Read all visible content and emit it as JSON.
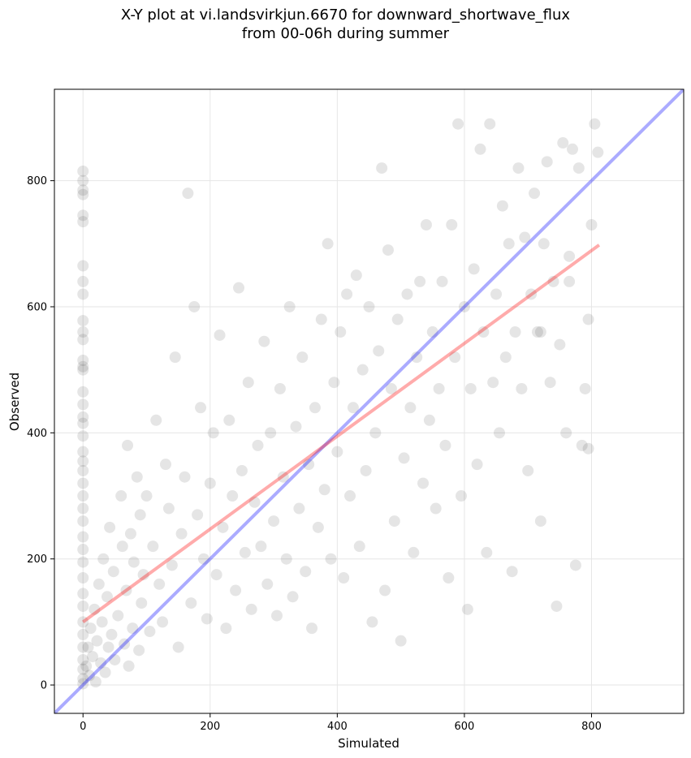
{
  "chart_data": {
    "type": "scatter",
    "title": "X-Y plot at vi.landsvirkjun.6670 for downward_shortwave_flux",
    "subtitle": "from 00-06h during summer",
    "xlabel": "Simulated",
    "ylabel": "Observed",
    "xlim": [
      -45,
      945
    ],
    "ylim": [
      -45,
      945
    ],
    "xticks": [
      0,
      200,
      400,
      600,
      800
    ],
    "yticks": [
      0,
      200,
      400,
      600,
      800
    ],
    "grid": true,
    "colors": {
      "points": "#000000",
      "identity_line": "#0000ff",
      "fit_line": "#ff0000",
      "grid": "#e6e6e6"
    },
    "identity_line": {
      "from": [
        -45,
        -45
      ],
      "to": [
        945,
        945
      ]
    },
    "fit_line": {
      "from": [
        0,
        100
      ],
      "to": [
        812,
        698
      ]
    },
    "points_subset_note": "representative subset of scatter points",
    "points": [
      [
        0,
        815
      ],
      [
        0,
        800
      ],
      [
        0,
        785
      ],
      [
        0,
        778
      ],
      [
        0,
        745
      ],
      [
        0,
        735
      ],
      [
        0,
        665
      ],
      [
        0,
        640
      ],
      [
        0,
        620
      ],
      [
        0,
        578
      ],
      [
        0,
        560
      ],
      [
        0,
        548
      ],
      [
        0,
        515
      ],
      [
        0,
        505
      ],
      [
        0,
        500
      ],
      [
        0,
        465
      ],
      [
        0,
        445
      ],
      [
        0,
        425
      ],
      [
        0,
        415
      ],
      [
        0,
        395
      ],
      [
        0,
        370
      ],
      [
        0,
        355
      ],
      [
        0,
        340
      ],
      [
        0,
        320
      ],
      [
        0,
        300
      ],
      [
        0,
        280
      ],
      [
        0,
        260
      ],
      [
        0,
        235
      ],
      [
        0,
        215
      ],
      [
        0,
        195
      ],
      [
        0,
        170
      ],
      [
        0,
        145
      ],
      [
        0,
        125
      ],
      [
        0,
        100
      ],
      [
        0,
        80
      ],
      [
        0,
        60
      ],
      [
        0,
        40
      ],
      [
        0,
        25
      ],
      [
        0,
        10
      ],
      [
        0,
        2
      ],
      [
        5,
        30
      ],
      [
        8,
        60
      ],
      [
        10,
        15
      ],
      [
        12,
        90
      ],
      [
        15,
        45
      ],
      [
        18,
        120
      ],
      [
        20,
        5
      ],
      [
        22,
        70
      ],
      [
        25,
        160
      ],
      [
        28,
        35
      ],
      [
        30,
        100
      ],
      [
        32,
        200
      ],
      [
        35,
        20
      ],
      [
        38,
        140
      ],
      [
        40,
        60
      ],
      [
        42,
        250
      ],
      [
        45,
        80
      ],
      [
        48,
        180
      ],
      [
        50,
        40
      ],
      [
        55,
        110
      ],
      [
        60,
        300
      ],
      [
        62,
        220
      ],
      [
        65,
        65
      ],
      [
        68,
        150
      ],
      [
        70,
        380
      ],
      [
        72,
        30
      ],
      [
        75,
        240
      ],
      [
        78,
        90
      ],
      [
        80,
        195
      ],
      [
        85,
        330
      ],
      [
        88,
        55
      ],
      [
        90,
        270
      ],
      [
        92,
        130
      ],
      [
        95,
        175
      ],
      [
        100,
        300
      ],
      [
        105,
        85
      ],
      [
        110,
        220
      ],
      [
        115,
        420
      ],
      [
        120,
        160
      ],
      [
        125,
        100
      ],
      [
        130,
        350
      ],
      [
        135,
        280
      ],
      [
        140,
        190
      ],
      [
        145,
        520
      ],
      [
        150,
        60
      ],
      [
        155,
        240
      ],
      [
        160,
        330
      ],
      [
        165,
        780
      ],
      [
        170,
        130
      ],
      [
        175,
        600
      ],
      [
        180,
        270
      ],
      [
        185,
        440
      ],
      [
        190,
        200
      ],
      [
        195,
        105
      ],
      [
        200,
        320
      ],
      [
        205,
        400
      ],
      [
        210,
        175
      ],
      [
        215,
        555
      ],
      [
        220,
        250
      ],
      [
        225,
        90
      ],
      [
        230,
        420
      ],
      [
        235,
        300
      ],
      [
        240,
        150
      ],
      [
        245,
        630
      ],
      [
        250,
        340
      ],
      [
        255,
        210
      ],
      [
        260,
        480
      ],
      [
        265,
        120
      ],
      [
        270,
        290
      ],
      [
        275,
        380
      ],
      [
        280,
        220
      ],
      [
        285,
        545
      ],
      [
        290,
        160
      ],
      [
        295,
        400
      ],
      [
        300,
        260
      ],
      [
        305,
        110
      ],
      [
        310,
        470
      ],
      [
        315,
        330
      ],
      [
        320,
        200
      ],
      [
        325,
        600
      ],
      [
        330,
        140
      ],
      [
        335,
        410
      ],
      [
        340,
        280
      ],
      [
        345,
        520
      ],
      [
        350,
        180
      ],
      [
        355,
        350
      ],
      [
        360,
        90
      ],
      [
        365,
        440
      ],
      [
        370,
        250
      ],
      [
        375,
        580
      ],
      [
        380,
        310
      ],
      [
        385,
        700
      ],
      [
        390,
        200
      ],
      [
        395,
        480
      ],
      [
        400,
        370
      ],
      [
        405,
        560
      ],
      [
        410,
        170
      ],
      [
        415,
        620
      ],
      [
        420,
        300
      ],
      [
        425,
        440
      ],
      [
        430,
        650
      ],
      [
        435,
        220
      ],
      [
        440,
        500
      ],
      [
        445,
        340
      ],
      [
        450,
        600
      ],
      [
        455,
        100
      ],
      [
        460,
        400
      ],
      [
        465,
        530
      ],
      [
        470,
        820
      ],
      [
        475,
        150
      ],
      [
        480,
        690
      ],
      [
        485,
        470
      ],
      [
        490,
        260
      ],
      [
        495,
        580
      ],
      [
        500,
        70
      ],
      [
        505,
        360
      ],
      [
        510,
        620
      ],
      [
        515,
        440
      ],
      [
        520,
        210
      ],
      [
        525,
        520
      ],
      [
        530,
        640
      ],
      [
        535,
        320
      ],
      [
        540,
        730
      ],
      [
        545,
        420
      ],
      [
        550,
        560
      ],
      [
        555,
        280
      ],
      [
        560,
        470
      ],
      [
        565,
        640
      ],
      [
        570,
        380
      ],
      [
        575,
        170
      ],
      [
        580,
        730
      ],
      [
        585,
        520
      ],
      [
        590,
        890
      ],
      [
        595,
        300
      ],
      [
        600,
        600
      ],
      [
        605,
        120
      ],
      [
        610,
        470
      ],
      [
        615,
        660
      ],
      [
        620,
        350
      ],
      [
        625,
        850
      ],
      [
        630,
        560
      ],
      [
        635,
        210
      ],
      [
        640,
        890
      ],
      [
        645,
        480
      ],
      [
        650,
        620
      ],
      [
        655,
        400
      ],
      [
        660,
        760
      ],
      [
        665,
        520
      ],
      [
        670,
        700
      ],
      [
        675,
        180
      ],
      [
        680,
        560
      ],
      [
        685,
        820
      ],
      [
        690,
        470
      ],
      [
        695,
        710
      ],
      [
        700,
        340
      ],
      [
        705,
        620
      ],
      [
        710,
        780
      ],
      [
        715,
        560
      ],
      [
        720,
        260
      ],
      [
        725,
        700
      ],
      [
        730,
        830
      ],
      [
        735,
        480
      ],
      [
        740,
        640
      ],
      [
        745,
        125
      ],
      [
        750,
        540
      ],
      [
        755,
        860
      ],
      [
        760,
        400
      ],
      [
        765,
        680
      ],
      [
        770,
        850
      ],
      [
        775,
        190
      ],
      [
        780,
        820
      ],
      [
        785,
        380
      ],
      [
        790,
        470
      ],
      [
        795,
        580
      ],
      [
        800,
        730
      ],
      [
        805,
        890
      ],
      [
        810,
        845
      ],
      [
        795,
        375
      ],
      [
        765,
        640
      ],
      [
        720,
        560
      ]
    ]
  }
}
